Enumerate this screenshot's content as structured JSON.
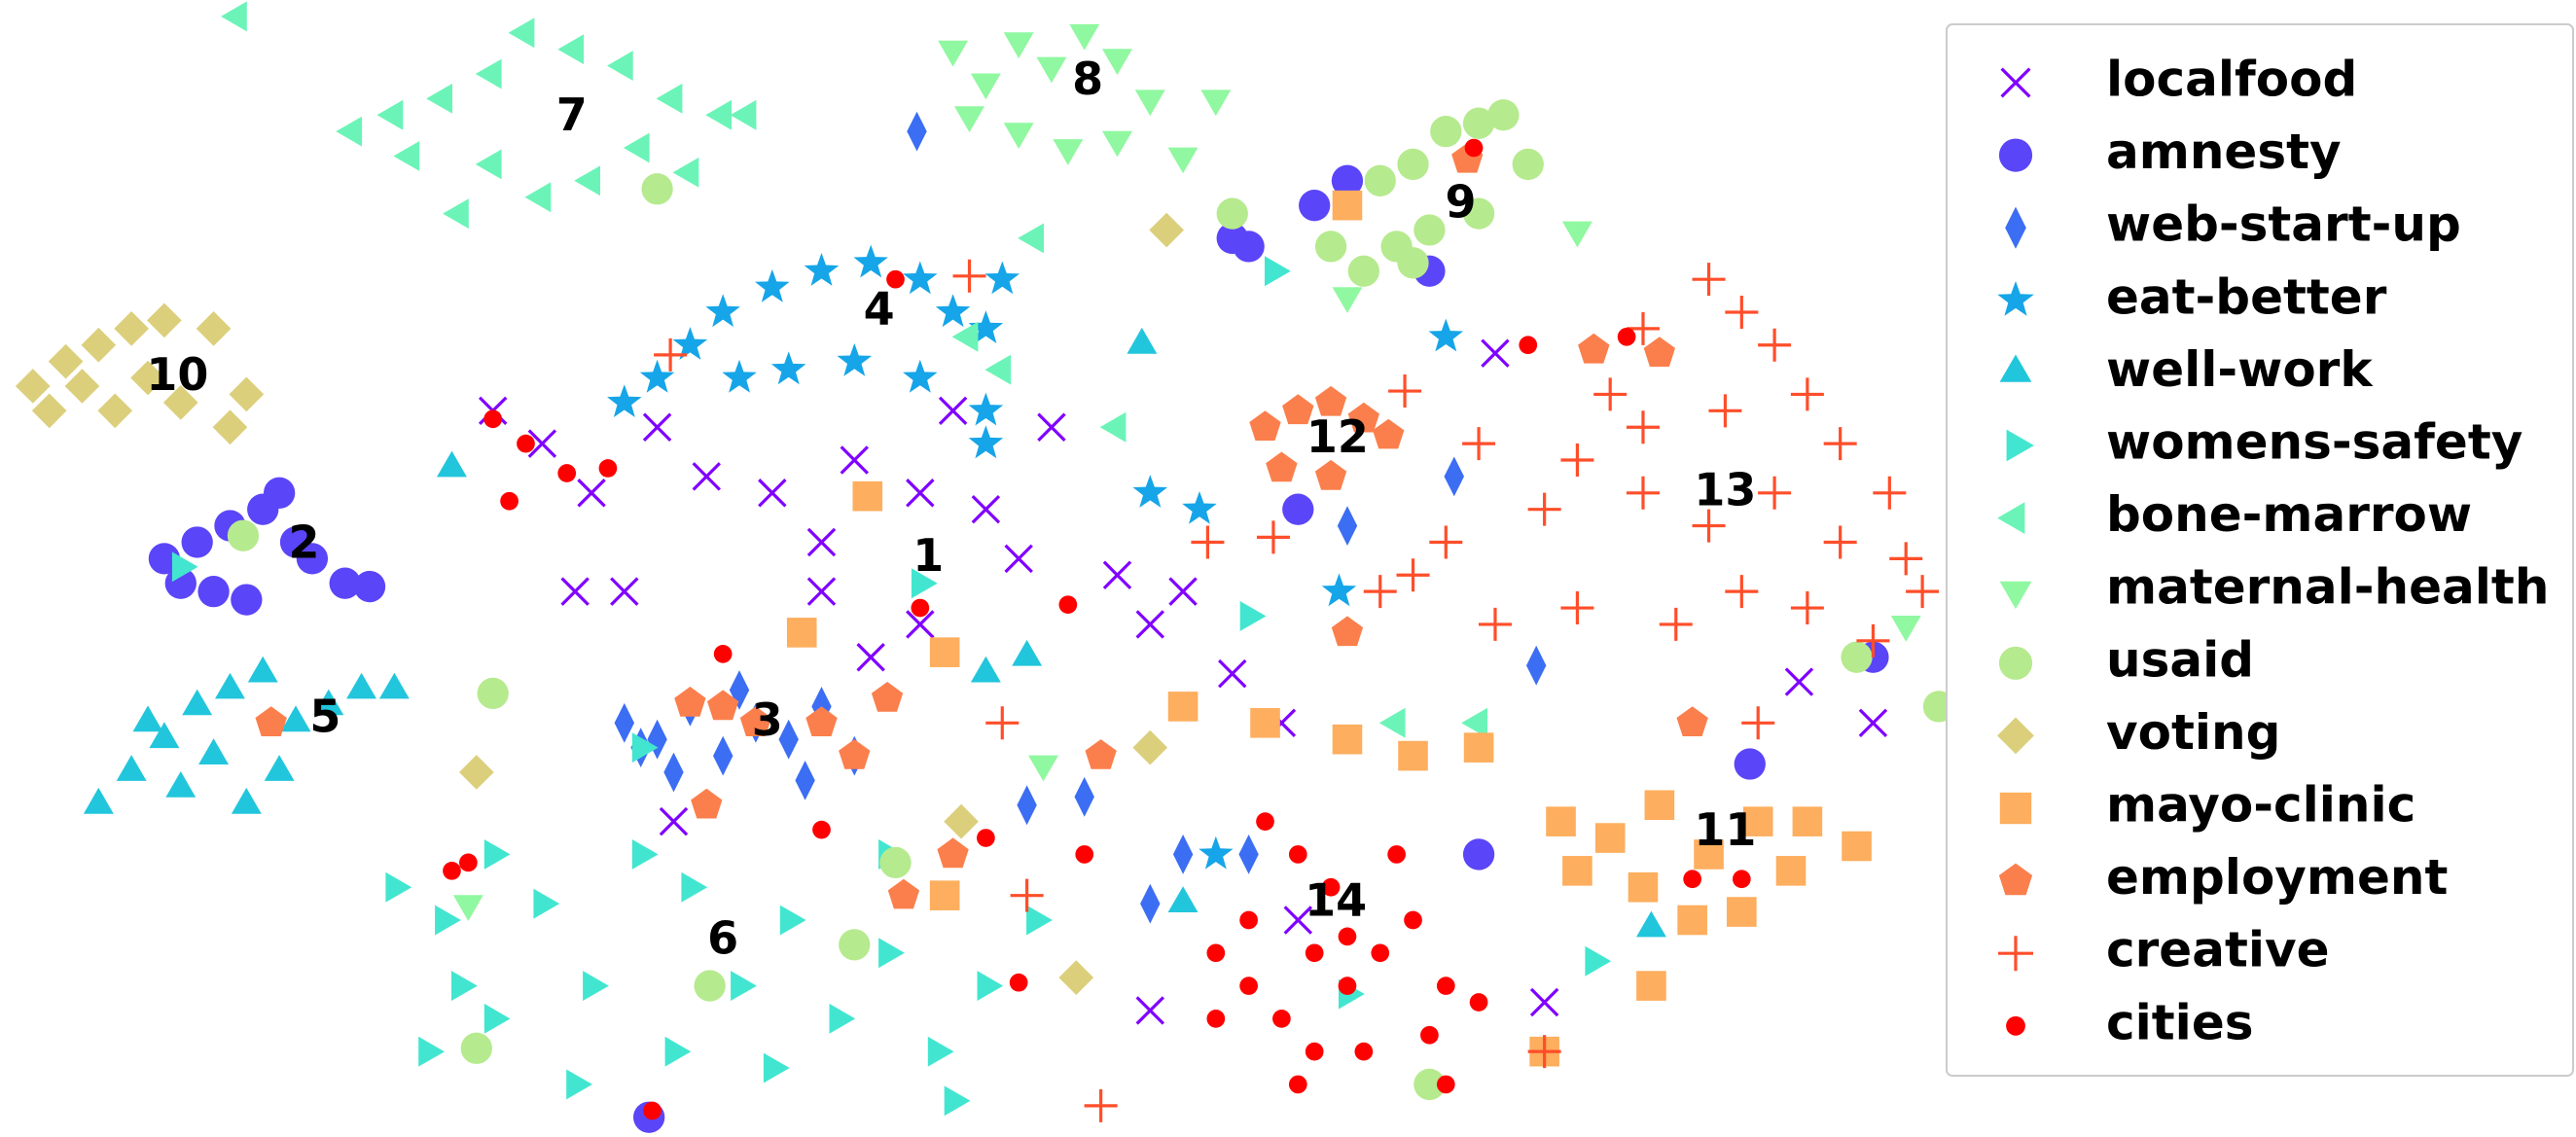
{
  "chart_data": {
    "type": "scatter",
    "xlim": [
      0,
      1180
    ],
    "ylim": [
      0,
      692
    ],
    "legend": "upper right",
    "series": [
      {
        "name": "localfood",
        "color": "#8000ff",
        "marker": "x",
        "x": [
          300,
          330,
          360,
          400,
          430,
          350,
          380,
          470,
          500,
          520,
          560,
          600,
          640,
          620,
          680,
          700,
          720,
          560,
          500,
          750,
          780,
          790,
          700,
          910,
          1095,
          1140,
          940,
          410,
          580,
          530
        ],
        "y": [
          442,
          422,
          392,
          432,
          402,
          332,
          332,
          392,
          362,
          412,
          392,
          382,
          432,
          352,
          342,
          312,
          332,
          312,
          332,
          282,
          252,
          132,
          77,
          477,
          277,
          252,
          82,
          192,
          442,
          292
        ]
      },
      {
        "name": "amnesty",
        "color": "#5b45f8",
        "marker": "o",
        "x": [
          100,
          120,
          140,
          160,
          170,
          190,
          210,
          130,
          150,
          180,
          225,
          110,
          760,
          800,
          870,
          790,
          900,
          1140,
          1065,
          395,
          820,
          750
        ],
        "y": [
          352,
          362,
          372,
          382,
          392,
          352,
          337,
          332,
          327,
          362,
          335,
          337,
          542,
          567,
          527,
          382,
          172,
          292,
          227,
          12,
          582,
          547
        ]
      },
      {
        "name": "web-start-up",
        "color": "#3c6ef4",
        "marker": "d",
        "x": [
          380,
          400,
          420,
          440,
          460,
          480,
          500,
          520,
          410,
          390,
          450,
          490,
          558,
          625,
          660,
          720,
          760,
          885,
          820,
          935,
          700
        ],
        "y": [
          252,
          242,
          262,
          232,
          252,
          242,
          262,
          232,
          222,
          237,
          272,
          217,
          612,
          202,
          207,
          172,
          172,
          402,
          372,
          287,
          142
        ]
      },
      {
        "name": "eat-better",
        "color": "#16a5e8",
        "marker": "*",
        "x": [
          440,
          470,
          500,
          530,
          560,
          580,
          600,
          450,
          480,
          520,
          560,
          400,
          420,
          380,
          610,
          700,
          730,
          600,
          880,
          815,
          740,
          600
        ],
        "y": [
          502,
          517,
          527,
          532,
          522,
          502,
          492,
          462,
          467,
          472,
          462,
          462,
          482,
          447,
          522,
          392,
          382,
          422,
          487,
          332,
          172,
          442
        ]
      },
      {
        "name": "well-work",
        "color": "#22c6dc",
        "marker": "^",
        "x": [
          60,
          80,
          100,
          120,
          140,
          160,
          180,
          200,
          220,
          240,
          90,
          130,
          150,
          110,
          170,
          275,
          695,
          600,
          625,
          1005,
          720
        ],
        "y": [
          202,
          222,
          242,
          262,
          272,
          282,
          252,
          262,
          272,
          272,
          252,
          232,
          202,
          212,
          222,
          407,
          482,
          282,
          292,
          127,
          142
        ]
      },
      {
        "name": "womens-safety",
        "color": "#42e6d0",
        "marker": ">",
        "x": [
          240,
          270,
          300,
          330,
          360,
          390,
          420,
          450,
          480,
          510,
          540,
          570,
          600,
          630,
          300,
          260,
          350,
          410,
          470,
          540,
          580,
          280,
          110,
          390,
          560,
          820,
          970,
          760,
          775
        ],
        "y": [
          152,
          132,
          172,
          142,
          92,
          172,
          152,
          92,
          132,
          72,
          112,
          52,
          92,
          132,
          72,
          52,
          32,
          52,
          42,
          172,
          22,
          92,
          347,
          237,
          337,
          87,
          107,
          317,
          527
        ]
      },
      {
        "name": "bone-marrow",
        "color": "#6cf4b8",
        "marker": "<",
        "x": [
          215,
          240,
          270,
          300,
          320,
          350,
          380,
          410,
          440,
          300,
          330,
          360,
          390,
          420,
          280,
          250,
          145,
          455,
          630,
          610,
          680,
          590,
          850,
          900
        ],
        "y": [
          612,
          622,
          632,
          647,
          672,
          662,
          652,
          632,
          622,
          592,
          572,
          582,
          602,
          587,
          562,
          597,
          682,
          622,
          547,
          467,
          432,
          487,
          252,
          252
        ]
      },
      {
        "name": "maternal-health",
        "color": "#90f8a0",
        "marker": "v",
        "x": [
          580,
          600,
          620,
          640,
          660,
          680,
          700,
          620,
          650,
          590,
          680,
          740,
          720,
          960,
          820,
          1160,
          635,
          285
        ],
        "y": [
          662,
          642,
          667,
          652,
          672,
          657,
          632,
          612,
          602,
          622,
          607,
          632,
          597,
          552,
          512,
          312,
          227,
          142
        ]
      },
      {
        "name": "usaid",
        "color": "#b6ea8e",
        "marker": "o",
        "x": [
          840,
          860,
          880,
          900,
          915,
          930,
          900,
          870,
          850,
          830,
          810,
          860,
          750,
          400,
          148,
          300,
          520,
          545,
          432,
          290,
          1130,
          1180,
          870
        ],
        "y": [
          582,
          592,
          612,
          617,
          622,
          592,
          562,
          552,
          542,
          527,
          542,
          532,
          562,
          577,
          366,
          270,
          117,
          167,
          92,
          54,
          292,
          262,
          32
        ]
      },
      {
        "name": "voting",
        "color": "#dccf7c",
        "marker": "D",
        "x": [
          20,
          40,
          60,
          80,
          100,
          130,
          150,
          30,
          70,
          110,
          140,
          90,
          50,
          290,
          710,
          585,
          655,
          700
        ],
        "y": [
          457,
          472,
          482,
          492,
          497,
          492,
          452,
          442,
          442,
          447,
          432,
          462,
          457,
          222,
          552,
          192,
          97,
          237
        ]
      },
      {
        "name": "mayo-clinic",
        "color": "#fdae5e",
        "marker": "s",
        "x": [
          950,
          980,
          1010,
          1040,
          1070,
          1100,
          1130,
          1000,
          1030,
          1060,
          1090,
          960,
          720,
          770,
          820,
          860,
          900,
          528,
          488,
          575,
          575,
          1005,
          940,
          820
        ],
        "y": [
          192,
          182,
          202,
          172,
          192,
          192,
          177,
          152,
          132,
          137,
          162,
          162,
          262,
          252,
          242,
          232,
          237,
          390,
          307,
          295,
          147,
          92,
          52,
          567
        ]
      },
      {
        "name": "employment",
        "color": "#fb7f4c",
        "marker": "p",
        "x": [
          770,
          790,
          810,
          830,
          845,
          780,
          810,
          420,
          440,
          500,
          540,
          520,
          430,
          460,
          165,
          893,
          970,
          1030,
          820,
          670,
          580,
          550,
          1010
        ],
        "y": [
          432,
          442,
          447,
          437,
          427,
          407,
          402,
          264,
          262,
          252,
          267,
          232,
          202,
          252,
          252,
          595,
          479,
          252,
          307,
          232,
          172,
          147,
          477
        ]
      },
      {
        "name": "creative",
        "color": "#ff4e2a",
        "marker": "+",
        "x": [
          1040,
          1060,
          1080,
          1100,
          1120,
          1150,
          1160,
          1000,
          980,
          960,
          1000,
          1040,
          1080,
          1120,
          1170,
          900,
          940,
          880,
          860,
          840,
          910,
          960,
          1020,
          1060,
          1100,
          1140,
          1000,
          1050,
          590,
          408,
          735,
          775,
          855,
          1070,
          625,
          670,
          940,
          610
        ],
        "y": [
          522,
          502,
          482,
          452,
          422,
          392,
          352,
          492,
          452,
          412,
          392,
          372,
          392,
          362,
          332,
          422,
          382,
          362,
          342,
          332,
          312,
          322,
          312,
          332,
          322,
          302,
          432,
          442,
          524,
          476,
          362,
          365,
          454,
          252,
          147,
          19,
          52,
          252
        ]
      },
      {
        "name": "cities",
        "color": "#ff0000",
        "marker": ".",
        "x": [
          740,
          760,
          780,
          800,
          820,
          840,
          860,
          880,
          900,
          790,
          810,
          760,
          770,
          850,
          740,
          790,
          830,
          870,
          800,
          820,
          300,
          320,
          345,
          370,
          310,
          545,
          500,
          440,
          275,
          285,
          660,
          620,
          397,
          897,
          1030,
          1060,
          930,
          650,
          600,
          880,
          990,
          560
        ],
        "y": [
          112,
          92,
          72,
          52,
          92,
          112,
          132,
          92,
          82,
          172,
          152,
          132,
          192,
          172,
          72,
          32,
          52,
          62,
          112,
          122,
          437,
          422,
          404,
          407,
          387,
          522,
          187,
          294,
          162,
          167,
          172,
          94,
          16,
          602,
          157,
          157,
          482,
          324,
          182,
          32,
          487,
          322
        ]
      }
    ],
    "annotations": [
      {
        "text": "1",
        "x": 565,
        "y": 352
      },
      {
        "text": "2",
        "x": 185,
        "y": 360
      },
      {
        "text": "3",
        "x": 467,
        "y": 252
      },
      {
        "text": "4",
        "x": 535,
        "y": 502
      },
      {
        "text": "5",
        "x": 198,
        "y": 254
      },
      {
        "text": "6",
        "x": 440,
        "y": 119
      },
      {
        "text": "7",
        "x": 348,
        "y": 620
      },
      {
        "text": "8",
        "x": 662,
        "y": 642
      },
      {
        "text": "9",
        "x": 889,
        "y": 567
      },
      {
        "text": "10",
        "x": 108,
        "y": 462
      },
      {
        "text": "11",
        "x": 1050,
        "y": 185
      },
      {
        "text": "12",
        "x": 814,
        "y": 424
      },
      {
        "text": "13",
        "x": 1050,
        "y": 392
      },
      {
        "text": "14",
        "x": 813,
        "y": 142
      }
    ]
  }
}
